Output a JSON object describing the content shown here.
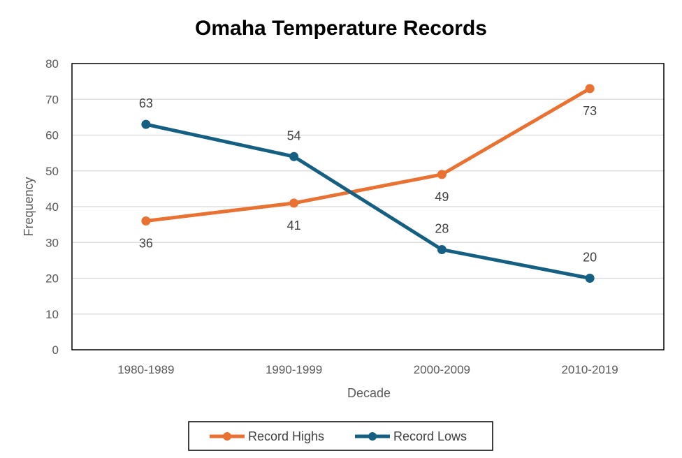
{
  "chart_data": {
    "type": "line",
    "title": "Omaha Temperature Records",
    "xlabel": "Decade",
    "ylabel": "Frequency",
    "categories": [
      "1980-1989",
      "1990-1999",
      "2000-2009",
      "2010-2019"
    ],
    "ylim": [
      0,
      80
    ],
    "yticks": [
      0,
      10,
      20,
      30,
      40,
      50,
      60,
      70,
      80
    ],
    "grid": true,
    "legend": "bottom",
    "series": [
      {
        "name": "Record Highs",
        "values": [
          36,
          41,
          49,
          73
        ],
        "color": "#E97132",
        "label_position": "below"
      },
      {
        "name": "Record Lows",
        "values": [
          63,
          54,
          28,
          20
        ],
        "color": "#156082",
        "label_position": "above"
      }
    ]
  }
}
